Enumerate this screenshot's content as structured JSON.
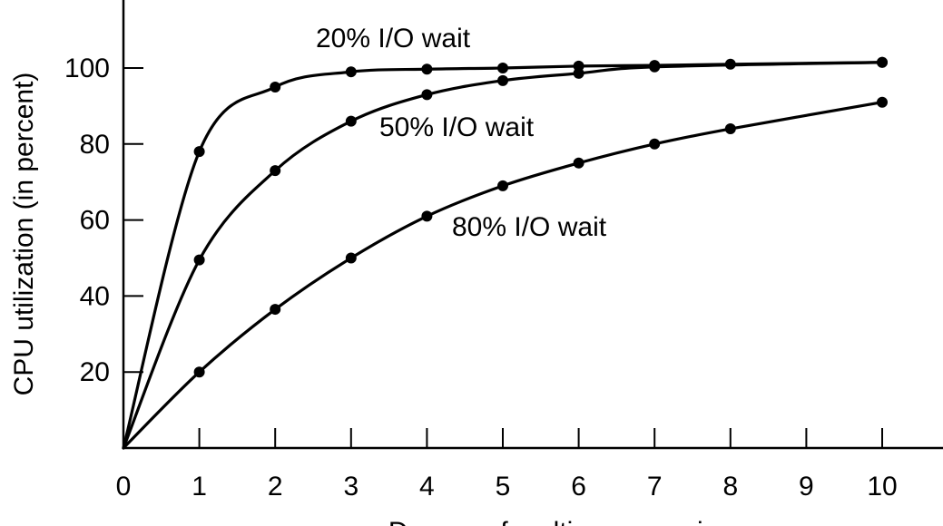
{
  "chart_data": {
    "type": "line",
    "title": "",
    "xlabel": "Degree of multiprogramming",
    "ylabel": "CPU utilization (in percent)",
    "xlim": [
      0,
      10.6
    ],
    "ylim": [
      0,
      118
    ],
    "x_ticks": [
      0,
      1,
      2,
      3,
      4,
      5,
      6,
      7,
      8,
      9,
      10
    ],
    "y_ticks": [
      20,
      40,
      60,
      80,
      100
    ],
    "grid": false,
    "legend": "none",
    "series": [
      {
        "name": "20% I/O wait",
        "x": [
          0,
          1,
          2,
          3,
          4,
          5,
          6,
          7,
          8,
          10
        ],
        "y": [
          0,
          78,
          95,
          99,
          99.7,
          100,
          100.5,
          100.7,
          101,
          101.5
        ]
      },
      {
        "name": "50% I/O wait",
        "x": [
          0,
          1,
          2,
          3,
          4,
          5,
          6,
          7,
          10
        ],
        "y": [
          0,
          49.5,
          73,
          86,
          93,
          96.7,
          98.6,
          100.3,
          101.5
        ]
      },
      {
        "name": "80% I/O wait",
        "x": [
          0,
          1,
          2,
          3,
          4,
          5,
          6,
          7,
          8,
          10
        ],
        "y": [
          0,
          20,
          36.5,
          50,
          61,
          69,
          75,
          80,
          84,
          91
        ]
      }
    ],
    "colors": {
      "series": "#000000",
      "background": "#ffffff"
    }
  }
}
